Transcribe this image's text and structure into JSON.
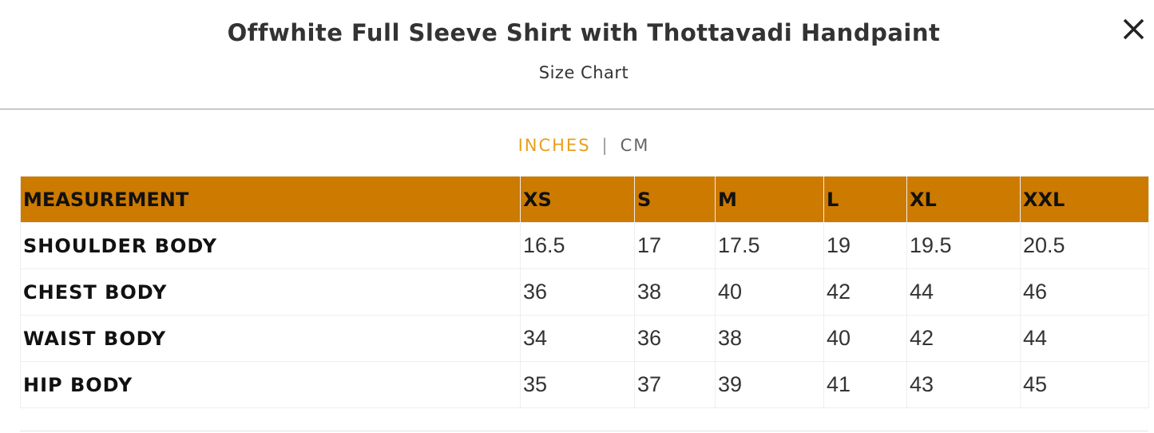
{
  "header": {
    "title": "Offwhite Full Sleeve Shirt with Thottavadi Handpaint",
    "subtitle": "Size Chart"
  },
  "units": [
    "INCHES",
    "CM"
  ],
  "table": {
    "header": [
      "MEASUREMENT",
      "XS",
      "S",
      "M",
      "L",
      "XL",
      "XXL"
    ],
    "rows": [
      [
        "SHOULDER BODY",
        "16.5",
        "17",
        "17.5",
        "19",
        "19.5",
        "20.5"
      ],
      [
        "CHEST BODY",
        "36",
        "38",
        "40",
        "42",
        "44",
        "46"
      ],
      [
        "WAIST BODY",
        "34",
        "36",
        "38",
        "40",
        "42",
        "44"
      ],
      [
        "HIP BODY",
        "35",
        "37",
        "39",
        "41",
        "43",
        "45"
      ]
    ]
  }
}
